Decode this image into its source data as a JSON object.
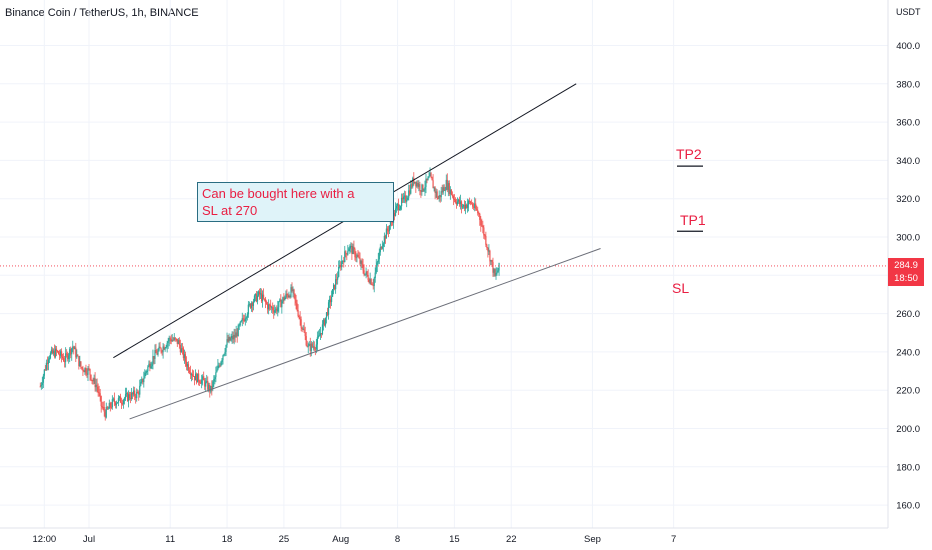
{
  "header": {
    "title": "Binance Coin / TetherUS, 1h, BINANCE",
    "currency": "USDT"
  },
  "colors": {
    "up": "#26a69a",
    "down": "#ef5350",
    "annotation": "#e91e42",
    "price_line": "#f23645",
    "box_fill": "#dff3f9",
    "box_border": "#2a6d82"
  },
  "annotations": {
    "note_line1": "Can be bought here with a",
    "note_line2": "SL at 270",
    "tp2": "TP2",
    "tp1": "TP1",
    "sl": "SL"
  },
  "price_tag": {
    "price": "284.9",
    "countdown": "18:50"
  },
  "chart_data": {
    "type": "candlestick",
    "title": "Binance Coin / TetherUS, 1h, BINANCE",
    "y_unit": "USDT",
    "ylim": [
      150,
      410
    ],
    "y_ticks": [
      "160.0",
      "180.0",
      "200.0",
      "220.0",
      "240.0",
      "260.0",
      "280.0",
      "300.0",
      "320.0",
      "340.0",
      "360.0",
      "380.0",
      "400.0"
    ],
    "y_tick_values": [
      160,
      180,
      200,
      220,
      240,
      260,
      280,
      300,
      320,
      340,
      360,
      380,
      400
    ],
    "x_ticks": [
      "12:00",
      "Jul",
      "11",
      "18",
      "25",
      "Aug",
      "8",
      "15",
      "22",
      "Sep",
      "7"
    ],
    "x_tick_days": [
      -5.5,
      0,
      10,
      17,
      24,
      31,
      38,
      45,
      52,
      62,
      72
    ],
    "x_range_days": [
      -6,
      73
    ],
    "last_price": 284.9,
    "close_path": [
      [
        -6,
        222
      ],
      [
        -5,
        238
      ],
      [
        -4,
        240
      ],
      [
        -3,
        236
      ],
      [
        -2,
        243
      ],
      [
        -1,
        232
      ],
      [
        0,
        230
      ],
      [
        0.5,
        225
      ],
      [
        1,
        222
      ],
      [
        1.5,
        212
      ],
      [
        2,
        208
      ],
      [
        3,
        214
      ],
      [
        4,
        215
      ],
      [
        5,
        217
      ],
      [
        6,
        218
      ],
      [
        7,
        230
      ],
      [
        8,
        238
      ],
      [
        9,
        242
      ],
      [
        10,
        247
      ],
      [
        11,
        245
      ],
      [
        12,
        234
      ],
      [
        13,
        227
      ],
      [
        14,
        225
      ],
      [
        15,
        220
      ],
      [
        16,
        233
      ],
      [
        17,
        245
      ],
      [
        18,
        248
      ],
      [
        19,
        257
      ],
      [
        20,
        266
      ],
      [
        21,
        270
      ],
      [
        22,
        264
      ],
      [
        23,
        262
      ],
      [
        24,
        268
      ],
      [
        25,
        272
      ],
      [
        26,
        257
      ],
      [
        27,
        242
      ],
      [
        28,
        244
      ],
      [
        29,
        256
      ],
      [
        30,
        271
      ],
      [
        31,
        286
      ],
      [
        32,
        295
      ],
      [
        33,
        290
      ],
      [
        34,
        281
      ],
      [
        35,
        276
      ],
      [
        36,
        296
      ],
      [
        37,
        306
      ],
      [
        38,
        316
      ],
      [
        39,
        320
      ],
      [
        40,
        330
      ],
      [
        41,
        325
      ],
      [
        42,
        331
      ],
      [
        43,
        320
      ],
      [
        44,
        328
      ],
      [
        45,
        320
      ],
      [
        46,
        316
      ],
      [
        47,
        318
      ],
      [
        48,
        312
      ],
      [
        49,
        296
      ],
      [
        50,
        279
      ],
      [
        50.6,
        285
      ]
    ],
    "trendlines": [
      {
        "name": "upper",
        "from": [
          3,
          237
        ],
        "to": [
          60,
          380
        ]
      },
      {
        "name": "lower",
        "from": [
          5,
          205
        ],
        "to": [
          63,
          294
        ]
      }
    ],
    "levels": [
      {
        "label": "TP2",
        "price": 337
      },
      {
        "label": "TP1",
        "price": 303
      }
    ],
    "stop_loss_label": "SL",
    "stop_loss_price": 270
  }
}
